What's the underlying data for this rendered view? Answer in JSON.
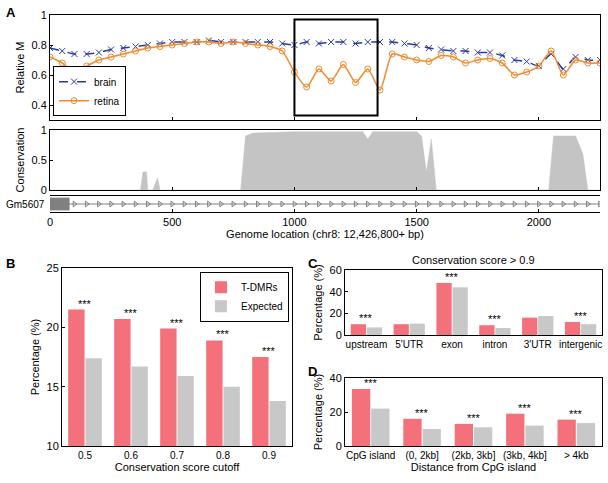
{
  "chart_data": [
    {
      "type": "line",
      "panel_label": "A",
      "xlabel": "Genome location (chr8: 12,426,800+ bp)",
      "ylabel": "Relative M",
      "xlim": [
        0,
        2250
      ],
      "xticks": [
        0,
        500,
        1000,
        1500,
        2000
      ],
      "ylim": [
        0.3,
        1.0
      ],
      "yticks": [
        0.4,
        0.6,
        0.8,
        1
      ],
      "grid": false,
      "legend": "lower left",
      "x": [
        0,
        50,
        100,
        150,
        200,
        250,
        300,
        350,
        400,
        450,
        500,
        550,
        600,
        650,
        700,
        750,
        800,
        850,
        900,
        950,
        1000,
        1050,
        1100,
        1150,
        1200,
        1250,
        1300,
        1350,
        1400,
        1450,
        1500,
        1550,
        1600,
        1650,
        1700,
        1750,
        1800,
        1850,
        1900,
        1950,
        2000,
        2050,
        2100,
        2150,
        2200,
        2250
      ],
      "series": [
        {
          "name": "brain",
          "color": "#2b3a9e",
          "marker": "x",
          "line_style": "dashed",
          "values": [
            0.78,
            0.76,
            0.74,
            0.74,
            0.75,
            0.77,
            0.78,
            0.79,
            0.8,
            0.81,
            0.82,
            0.82,
            0.82,
            0.83,
            0.82,
            0.82,
            0.82,
            0.82,
            0.82,
            0.81,
            0.8,
            0.82,
            0.81,
            0.82,
            0.82,
            0.81,
            0.82,
            0.82,
            0.82,
            0.81,
            0.8,
            0.78,
            0.77,
            0.76,
            0.76,
            0.75,
            0.75,
            0.73,
            0.7,
            0.69,
            0.66,
            0.74,
            0.64,
            0.72,
            0.7,
            0.7
          ]
        },
        {
          "name": "retina",
          "color": "#f28a2e",
          "marker": "circle",
          "line_style": "solid",
          "values": [
            0.72,
            0.68,
            0.62,
            0.66,
            0.7,
            0.72,
            0.74,
            0.76,
            0.78,
            0.79,
            0.8,
            0.81,
            0.82,
            0.82,
            0.81,
            0.82,
            0.81,
            0.8,
            0.79,
            0.76,
            0.62,
            0.52,
            0.64,
            0.56,
            0.67,
            0.55,
            0.64,
            0.5,
            0.74,
            0.72,
            0.7,
            0.69,
            0.73,
            0.72,
            0.68,
            0.7,
            0.71,
            0.68,
            0.6,
            0.62,
            0.66,
            0.76,
            0.6,
            0.7,
            0.68,
            0.68
          ]
        }
      ],
      "highlight": {
        "x": [
          1000,
          1340
        ],
        "y": [
          0.33,
          0.97
        ]
      },
      "conservation": {
        "type": "area",
        "ylabel": "Conservation",
        "color": "#c4c4c4",
        "ylim": [
          0,
          1
        ],
        "yticks": [
          0,
          0.5,
          1
        ],
        "x": [
          0,
          370,
          380,
          395,
          400,
          420,
          440,
          450,
          780,
          800,
          830,
          1000,
          1280,
          1300,
          1320,
          1500,
          1520,
          1540,
          1560,
          1580,
          2040,
          2060,
          2150,
          2180,
          2200,
          2250
        ],
        "values": [
          0,
          0,
          0.3,
          0.3,
          0,
          0,
          0.2,
          0,
          0,
          0.9,
          0.95,
          0.97,
          0.97,
          0.85,
          0.97,
          0.97,
          0.9,
          0.3,
          0.85,
          0,
          0,
          0.9,
          0.9,
          0.6,
          0,
          0
        ]
      },
      "gene": {
        "name": "Gm5607",
        "start": 0,
        "end": 80,
        "color": "#808080"
      }
    },
    {
      "type": "bar",
      "panel_label": "B",
      "xlabel": "Conservation score cutoff",
      "ylabel": "Percentage (%)",
      "categories": [
        "0.5",
        "0.6",
        "0.7",
        "0.8",
        "0.9"
      ],
      "ylim": [
        10,
        25
      ],
      "yticks": [
        10,
        15,
        20,
        25
      ],
      "grid": false,
      "legend": "upper right",
      "series": [
        {
          "name": "T-DMRs",
          "color": "#f4707a",
          "values": [
            21.5,
            20.7,
            19.9,
            18.9,
            17.5
          ]
        },
        {
          "name": "Expected",
          "color": "#c8c8c8",
          "values": [
            17.4,
            16.7,
            15.9,
            15.0,
            13.8
          ]
        }
      ],
      "annotations": [
        {
          "text": "***",
          "category": "0.5"
        },
        {
          "text": "***",
          "category": "0.6"
        },
        {
          "text": "***",
          "category": "0.7"
        },
        {
          "text": "***",
          "category": "0.8"
        },
        {
          "text": "***",
          "category": "0.9"
        }
      ]
    },
    {
      "type": "bar",
      "panel_label": "C",
      "title": "Conservation score > 0.9",
      "ylabel": "Percentage (%)",
      "categories": [
        "upstream",
        "5'UTR",
        "exon",
        "intron",
        "3'UTR",
        "intergenic"
      ],
      "ylim": [
        0,
        60
      ],
      "yticks": [
        0,
        20,
        40,
        60
      ],
      "grid": false,
      "series": [
        {
          "name": "T-DMRs",
          "color": "#f4707a",
          "values": [
            10,
            10,
            48,
            9,
            16,
            12
          ]
        },
        {
          "name": "Expected",
          "color": "#c8c8c8",
          "values": [
            7,
            10.5,
            44,
            6.5,
            17.5,
            10
          ]
        }
      ],
      "annotations": [
        {
          "text": "***",
          "category": "upstream"
        },
        {
          "text": "***",
          "category": "exon"
        },
        {
          "text": "***",
          "category": "intron"
        },
        {
          "text": "***",
          "category": "intergenic"
        }
      ]
    },
    {
      "type": "bar",
      "panel_label": "D",
      "xlabel": "Distance from CpG island",
      "ylabel": "Percentage (%)",
      "categories": [
        "CpG island",
        "(0, 2kb]",
        "(2kb, 3kb]",
        "(3kb, 4kb]",
        "> 4kb"
      ],
      "ylim": [
        0,
        40
      ],
      "yticks": [
        0,
        20,
        40
      ],
      "grid": false,
      "series": [
        {
          "name": "T-DMRs",
          "color": "#f4707a",
          "values": [
            33.5,
            16,
            13,
            19,
            15.5
          ]
        },
        {
          "name": "Expected",
          "color": "#c8c8c8",
          "values": [
            22,
            10,
            11,
            12,
            13.5
          ]
        }
      ],
      "annotations": [
        {
          "text": "***",
          "category": "CpG island"
        },
        {
          "text": "***",
          "category": "(0, 2kb]"
        },
        {
          "text": "***",
          "category": "(2kb, 3kb]"
        },
        {
          "text": "***",
          "category": "(3kb, 4kb]"
        },
        {
          "text": "***",
          "category": "> 4kb"
        }
      ]
    }
  ]
}
